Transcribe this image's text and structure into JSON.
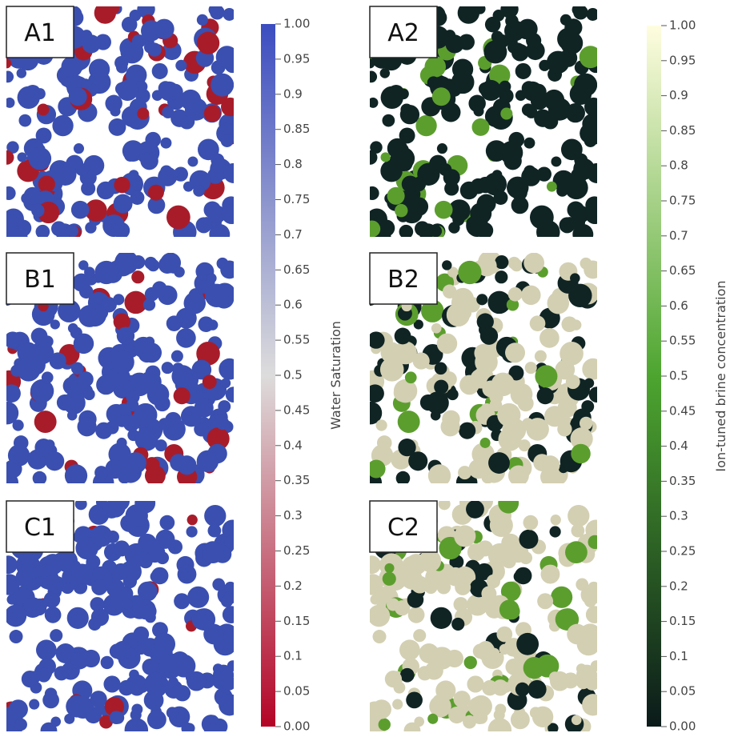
{
  "panels": [
    {
      "label": "A1",
      "kind": "saturation",
      "oil": 0.22
    },
    {
      "label": "B1",
      "kind": "saturation",
      "oil": 0.1
    },
    {
      "label": "C1",
      "kind": "saturation",
      "oil": 0.07
    },
    {
      "label": "A2",
      "kind": "brine",
      "mix": 0
    },
    {
      "label": "B2",
      "kind": "brine",
      "mix": 0.55
    },
    {
      "label": "C2",
      "kind": "brine",
      "mix": 0.75
    }
  ],
  "colorbars": [
    {
      "title": "Water Saturation",
      "lim": [
        0,
        1
      ],
      "colors": [
        "#b40426",
        "#dddcdc",
        "#3b4cc0"
      ],
      "ticks": [
        {
          "value": 0,
          "label": "0.00"
        },
        0.05,
        0.1,
        0.15,
        0.2,
        0.25,
        0.3,
        0.35,
        0.4,
        0.45,
        0.5,
        0.55,
        0.6,
        0.65,
        0.7,
        0.75,
        0.8,
        0.85,
        0.9,
        0.95,
        {
          "value": 1,
          "label": "1.00"
        }
      ]
    },
    {
      "title": "Ion-tuned brine concentration",
      "lim": [
        0,
        1
      ],
      "colors": [
        "#0b1a1a",
        "#4da52f",
        "#fffde0"
      ],
      "ticks": [
        {
          "value": 0,
          "label": "0.00"
        },
        0.05,
        0.1,
        0.15,
        0.2,
        0.25,
        0.3,
        0.35,
        0.4,
        0.45,
        0.5,
        0.55,
        0.6,
        0.65,
        0.7,
        0.75,
        0.8,
        0.85,
        0.9,
        0.95,
        {
          "value": 1,
          "label": "1.00"
        }
      ]
    }
  ]
}
